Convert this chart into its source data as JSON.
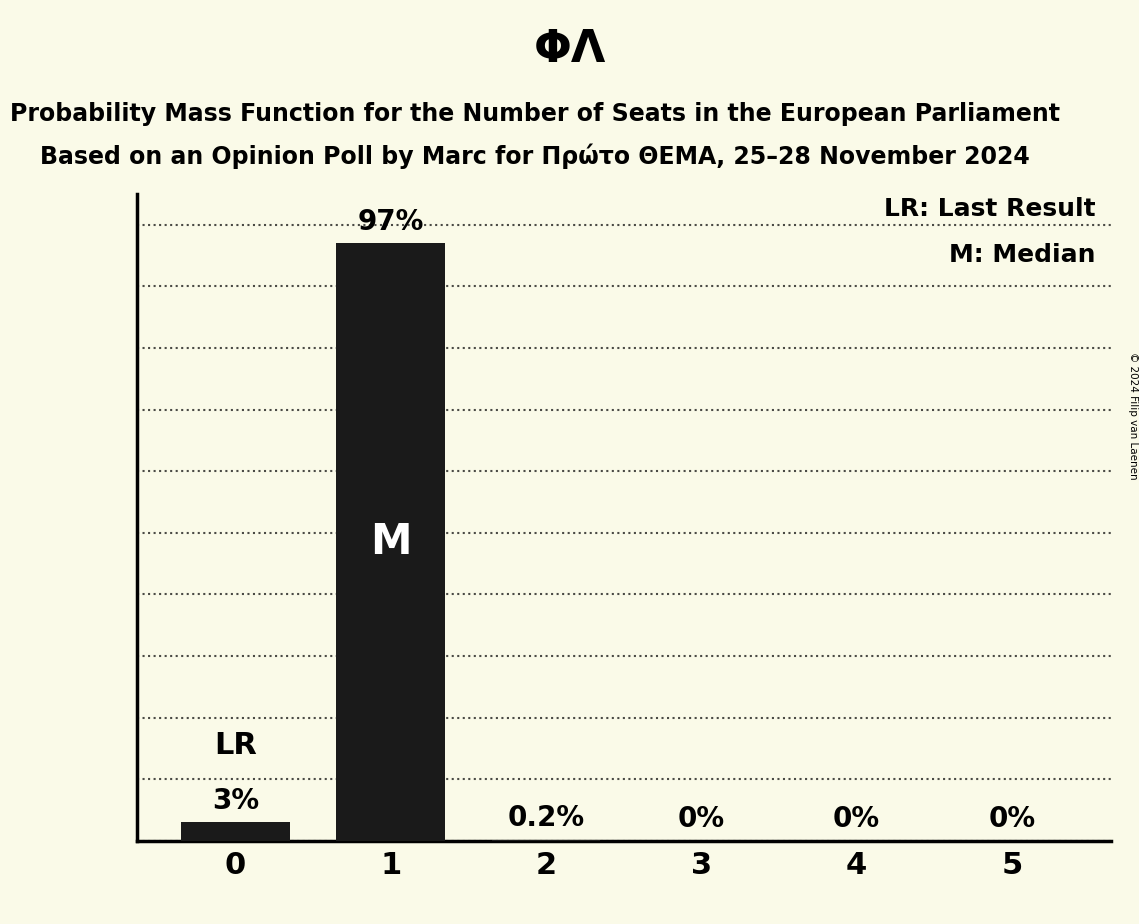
{
  "title_symbol": "ΦΛ",
  "subtitle_line1": "Probability Mass Function for the Number of Seats in the European Parliament",
  "subtitle_line2": "Based on an Opinion Poll by Marc for Πρώτo ΘΕΜΑ, 25–28 November 2024",
  "copyright_text": "© 2024 Filip van Laenen",
  "categories": [
    0,
    1,
    2,
    3,
    4,
    5
  ],
  "values": [
    0.03,
    0.97,
    0.002,
    0.0,
    0.0,
    0.0
  ],
  "bar_labels": [
    "3%",
    "97%",
    "0.2%",
    "0%",
    "0%",
    "0%"
  ],
  "bar_color": "#1a1a1a",
  "background_color": "#fafae8",
  "median_bar": 1,
  "last_result_bar": 0,
  "legend_lr": "LR: Last Result",
  "legend_m": "M: Median",
  "ylim": [
    0,
    1.05
  ],
  "yticks": [
    0.0,
    0.1,
    0.2,
    0.3,
    0.4,
    0.5,
    0.6,
    0.7,
    0.8,
    0.9,
    1.0
  ],
  "title_fontsize": 32,
  "subtitle_fontsize": 17,
  "bar_label_fontsize": 20,
  "axis_label_fontsize": 22,
  "legend_fontsize": 18,
  "ylabel_fontsize": 22,
  "m_label_fontsize": 30,
  "lr_label_fontsize": 22
}
